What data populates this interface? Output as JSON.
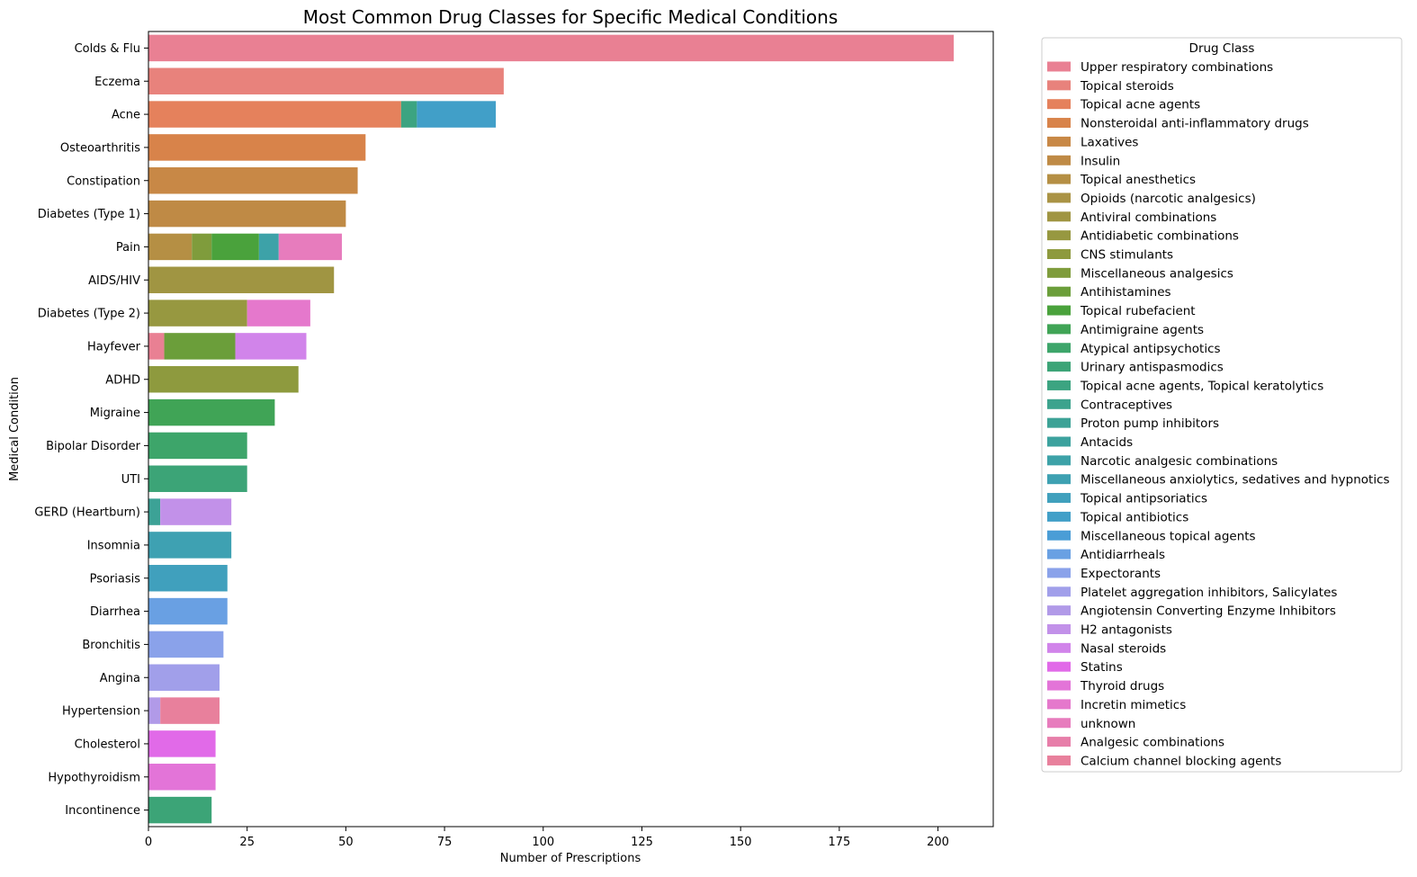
{
  "chart_data": {
    "type": "bar",
    "orientation": "horizontal",
    "stacked": true,
    "title": "Most Common Drug Classes for Specific Medical Conditions",
    "xlabel": "Number of Prescriptions",
    "ylabel": "Medical Condition",
    "xlim": [
      0,
      214
    ],
    "xticks": [
      0,
      25,
      50,
      75,
      100,
      125,
      150,
      175,
      200
    ],
    "grid": false,
    "legend": {
      "title": "Drug Class",
      "placement": "outside-right"
    },
    "categories": [
      "Colds & Flu",
      "Eczema",
      "Acne",
      "Osteoarthritis",
      "Constipation",
      "Diabetes (Type 1)",
      "Pain",
      "AIDS/HIV",
      "Diabetes (Type 2)",
      "Hayfever",
      "ADHD",
      "Migraine",
      "Bipolar Disorder",
      "UTI",
      "GERD (Heartburn)",
      "Insomnia",
      "Psoriasis",
      "Diarrhea",
      "Bronchitis",
      "Angina",
      "Hypertension",
      "Cholesterol",
      "Hypothyroidism",
      "Incontinence"
    ],
    "series": [
      {
        "name": "Upper respiratory combinations",
        "color": "#e98093",
        "values": [
          204,
          0,
          0,
          0,
          0,
          0,
          0,
          0,
          0,
          4,
          0,
          0,
          0,
          0,
          0,
          0,
          0,
          0,
          0,
          0,
          0,
          0,
          0,
          0
        ]
      },
      {
        "name": "Topical steroids",
        "color": "#e8827c",
        "values": [
          0,
          90,
          0,
          0,
          0,
          0,
          0,
          0,
          0,
          0,
          0,
          0,
          0,
          0,
          0,
          0,
          0,
          0,
          0,
          0,
          0,
          0,
          0,
          0
        ]
      },
      {
        "name": "Topical acne agents",
        "color": "#e5815c",
        "values": [
          0,
          0,
          64,
          0,
          0,
          0,
          0,
          0,
          0,
          0,
          0,
          0,
          0,
          0,
          0,
          0,
          0,
          0,
          0,
          0,
          0,
          0,
          0,
          0
        ]
      },
      {
        "name": "Nonsteroidal anti-inflammatory drugs",
        "color": "#d8834a",
        "values": [
          0,
          0,
          0,
          55,
          0,
          0,
          0,
          0,
          0,
          0,
          0,
          0,
          0,
          0,
          0,
          0,
          0,
          0,
          0,
          0,
          0,
          0,
          0,
          0
        ]
      },
      {
        "name": "Laxatives",
        "color": "#c88846",
        "values": [
          0,
          0,
          0,
          0,
          53,
          0,
          0,
          0,
          0,
          0,
          0,
          0,
          0,
          0,
          0,
          0,
          0,
          0,
          0,
          0,
          0,
          0,
          0,
          0
        ]
      },
      {
        "name": "Insulin",
        "color": "#bf8a45",
        "values": [
          0,
          0,
          0,
          0,
          0,
          50,
          0,
          0,
          0,
          0,
          0,
          0,
          0,
          0,
          0,
          0,
          0,
          0,
          0,
          0,
          0,
          0,
          0,
          0
        ]
      },
      {
        "name": "Topical anesthetics",
        "color": "#b58f44",
        "values": [
          0,
          0,
          0,
          0,
          0,
          0,
          11,
          0,
          0,
          0,
          0,
          0,
          0,
          0,
          0,
          0,
          0,
          0,
          0,
          0,
          0,
          0,
          0,
          0
        ]
      },
      {
        "name": "Opioids (narcotic analgesics)",
        "color": "#aa9344",
        "values": [
          0,
          0,
          0,
          0,
          0,
          0,
          0,
          0,
          0,
          0,
          0,
          0,
          0,
          0,
          0,
          0,
          0,
          0,
          0,
          0,
          0,
          0,
          0,
          0
        ]
      },
      {
        "name": "Antiviral combinations",
        "color": "#a09542",
        "values": [
          0,
          0,
          0,
          0,
          0,
          0,
          0,
          47,
          0,
          0,
          0,
          0,
          0,
          0,
          0,
          0,
          0,
          0,
          0,
          0,
          0,
          0,
          0,
          0
        ]
      },
      {
        "name": "Antidiabetic combinations",
        "color": "#979840",
        "values": [
          0,
          0,
          0,
          0,
          0,
          0,
          0,
          0,
          25,
          0,
          0,
          0,
          0,
          0,
          0,
          0,
          0,
          0,
          0,
          0,
          0,
          0,
          0,
          0
        ]
      },
      {
        "name": "CNS stimulants",
        "color": "#8e9a3e",
        "values": [
          0,
          0,
          0,
          0,
          0,
          0,
          0,
          0,
          0,
          0,
          38,
          0,
          0,
          0,
          0,
          0,
          0,
          0,
          0,
          0,
          0,
          0,
          0,
          0
        ]
      },
      {
        "name": "Miscellaneous analgesics",
        "color": "#7f9c3c",
        "values": [
          0,
          0,
          0,
          0,
          0,
          0,
          5,
          0,
          0,
          0,
          0,
          0,
          0,
          0,
          0,
          0,
          0,
          0,
          0,
          0,
          0,
          0,
          0,
          0
        ]
      },
      {
        "name": "Antihistamines",
        "color": "#6b9e3a",
        "values": [
          0,
          0,
          0,
          0,
          0,
          0,
          0,
          0,
          0,
          18,
          0,
          0,
          0,
          0,
          0,
          0,
          0,
          0,
          0,
          0,
          0,
          0,
          0,
          0
        ]
      },
      {
        "name": "Topical rubefacient",
        "color": "#4aa23c",
        "values": [
          0,
          0,
          0,
          0,
          0,
          0,
          12,
          0,
          0,
          0,
          0,
          0,
          0,
          0,
          0,
          0,
          0,
          0,
          0,
          0,
          0,
          0,
          0,
          0
        ]
      },
      {
        "name": "Antimigraine agents",
        "color": "#40a456",
        "values": [
          0,
          0,
          0,
          0,
          0,
          0,
          0,
          0,
          0,
          0,
          0,
          32,
          0,
          0,
          0,
          0,
          0,
          0,
          0,
          0,
          0,
          0,
          0,
          0
        ]
      },
      {
        "name": "Atypical antipsychotics",
        "color": "#3da56a",
        "values": [
          0,
          0,
          0,
          0,
          0,
          0,
          0,
          0,
          0,
          0,
          0,
          0,
          25,
          0,
          0,
          0,
          0,
          0,
          0,
          0,
          0,
          0,
          0,
          0
        ]
      },
      {
        "name": "Urinary antispasmodics",
        "color": "#3ca477",
        "values": [
          0,
          0,
          0,
          0,
          0,
          0,
          0,
          0,
          0,
          0,
          0,
          0,
          0,
          25,
          0,
          0,
          0,
          0,
          0,
          0,
          0,
          0,
          0,
          16
        ]
      },
      {
        "name": "Topical acne agents, Topical keratolytics",
        "color": "#3ca481",
        "values": [
          0,
          0,
          4,
          0,
          0,
          0,
          0,
          0,
          0,
          0,
          0,
          0,
          0,
          0,
          0,
          0,
          0,
          0,
          0,
          0,
          0,
          0,
          0,
          0
        ]
      },
      {
        "name": "Contraceptives",
        "color": "#3ca38d",
        "values": [
          0,
          0,
          0,
          0,
          0,
          0,
          0,
          0,
          0,
          0,
          0,
          0,
          0,
          0,
          0,
          0,
          0,
          0,
          0,
          0,
          0,
          0,
          0,
          0
        ]
      },
      {
        "name": "Proton pump inhibitors",
        "color": "#3ca296",
        "values": [
          0,
          0,
          0,
          0,
          0,
          0,
          0,
          0,
          0,
          0,
          0,
          0,
          0,
          0,
          3,
          0,
          0,
          0,
          0,
          0,
          0,
          0,
          0,
          0
        ]
      },
      {
        "name": "Antacids",
        "color": "#3ca29e",
        "values": [
          0,
          0,
          0,
          0,
          0,
          0,
          0,
          0,
          0,
          0,
          0,
          0,
          0,
          0,
          0,
          0,
          0,
          0,
          0,
          0,
          0,
          0,
          0,
          0
        ]
      },
      {
        "name": "Narcotic analgesic combinations",
        "color": "#3da2a8",
        "values": [
          0,
          0,
          0,
          0,
          0,
          0,
          5,
          0,
          0,
          0,
          0,
          0,
          0,
          0,
          0,
          0,
          0,
          0,
          0,
          0,
          0,
          0,
          0,
          0
        ]
      },
      {
        "name": "Miscellaneous anxiolytics, sedatives and hypnotics",
        "color": "#3ea1b2",
        "values": [
          0,
          0,
          0,
          0,
          0,
          0,
          0,
          0,
          0,
          0,
          0,
          0,
          0,
          0,
          0,
          21,
          0,
          0,
          0,
          0,
          0,
          0,
          0,
          0
        ]
      },
      {
        "name": "Topical antipsoriatics",
        "color": "#40a0bd",
        "values": [
          0,
          0,
          0,
          0,
          0,
          0,
          0,
          0,
          0,
          0,
          0,
          0,
          0,
          0,
          0,
          0,
          20,
          0,
          0,
          0,
          0,
          0,
          0,
          0
        ]
      },
      {
        "name": "Topical antibiotics",
        "color": "#419fc8",
        "values": [
          0,
          0,
          20,
          0,
          0,
          0,
          0,
          0,
          0,
          0,
          0,
          0,
          0,
          0,
          0,
          0,
          0,
          0,
          0,
          0,
          0,
          0,
          0,
          0
        ]
      },
      {
        "name": "Miscellaneous topical agents",
        "color": "#4a9dd6",
        "values": [
          0,
          0,
          0,
          0,
          0,
          0,
          0,
          0,
          0,
          0,
          0,
          0,
          0,
          0,
          0,
          0,
          0,
          0,
          0,
          0,
          0,
          0,
          0,
          0
        ]
      },
      {
        "name": "Antidiarrheals",
        "color": "#69a0e3",
        "values": [
          0,
          0,
          0,
          0,
          0,
          0,
          0,
          0,
          0,
          0,
          0,
          0,
          0,
          0,
          0,
          0,
          0,
          20,
          0,
          0,
          0,
          0,
          0,
          0
        ]
      },
      {
        "name": "Expectorants",
        "color": "#8aa2ea",
        "values": [
          0,
          0,
          0,
          0,
          0,
          0,
          0,
          0,
          0,
          0,
          0,
          0,
          0,
          0,
          0,
          0,
          0,
          0,
          19,
          0,
          0,
          0,
          0,
          0
        ]
      },
      {
        "name": "Platelet aggregation inhibitors, Salicylates",
        "color": "#a19fea",
        "values": [
          0,
          0,
          0,
          0,
          0,
          0,
          0,
          0,
          0,
          0,
          0,
          0,
          0,
          0,
          0,
          0,
          0,
          0,
          0,
          18,
          0,
          0,
          0,
          0
        ]
      },
      {
        "name": "Angiotensin Converting Enzyme Inhibitors",
        "color": "#b19ae8",
        "values": [
          0,
          0,
          0,
          0,
          0,
          0,
          0,
          0,
          0,
          0,
          0,
          0,
          0,
          0,
          0,
          0,
          0,
          0,
          0,
          0,
          3,
          0,
          0,
          0
        ]
      },
      {
        "name": "H2 antagonists",
        "color": "#c291e9",
        "values": [
          0,
          0,
          0,
          0,
          0,
          0,
          0,
          0,
          0,
          0,
          0,
          0,
          0,
          0,
          18,
          0,
          0,
          0,
          0,
          0,
          0,
          0,
          0,
          0
        ]
      },
      {
        "name": "Nasal steroids",
        "color": "#d184ea",
        "values": [
          0,
          0,
          0,
          0,
          0,
          0,
          0,
          0,
          0,
          18,
          0,
          0,
          0,
          0,
          0,
          0,
          0,
          0,
          0,
          0,
          0,
          0,
          0,
          0
        ]
      },
      {
        "name": "Statins",
        "color": "#e16ae8",
        "values": [
          0,
          0,
          0,
          0,
          0,
          0,
          0,
          0,
          0,
          0,
          0,
          0,
          0,
          0,
          0,
          0,
          0,
          0,
          0,
          0,
          0,
          17,
          0,
          0
        ]
      },
      {
        "name": "Thyroid drugs",
        "color": "#e374d8",
        "values": [
          0,
          0,
          0,
          0,
          0,
          0,
          0,
          0,
          0,
          0,
          0,
          0,
          0,
          0,
          0,
          0,
          0,
          0,
          0,
          0,
          0,
          0,
          17,
          0
        ]
      },
      {
        "name": "Incretin mimetics",
        "color": "#e578cc",
        "values": [
          0,
          0,
          0,
          0,
          0,
          0,
          0,
          0,
          16,
          0,
          0,
          0,
          0,
          0,
          0,
          0,
          0,
          0,
          0,
          0,
          0,
          0,
          0,
          0
        ]
      },
      {
        "name": "unknown",
        "color": "#e77cbd",
        "values": [
          0,
          0,
          0,
          0,
          0,
          0,
          16,
          0,
          0,
          0,
          0,
          0,
          0,
          0,
          0,
          0,
          0,
          0,
          0,
          0,
          0,
          0,
          0,
          0
        ]
      },
      {
        "name": "Analgesic combinations",
        "color": "#e77ea9",
        "values": [
          0,
          0,
          0,
          0,
          0,
          0,
          0,
          0,
          0,
          0,
          0,
          0,
          0,
          0,
          0,
          0,
          0,
          0,
          0,
          0,
          0,
          0,
          0,
          0
        ]
      },
      {
        "name": "Calcium channel blocking agents",
        "color": "#e8809c",
        "values": [
          0,
          0,
          0,
          0,
          0,
          0,
          0,
          0,
          0,
          0,
          0,
          0,
          0,
          0,
          0,
          0,
          0,
          0,
          0,
          0,
          15,
          0,
          0,
          0
        ]
      }
    ]
  }
}
